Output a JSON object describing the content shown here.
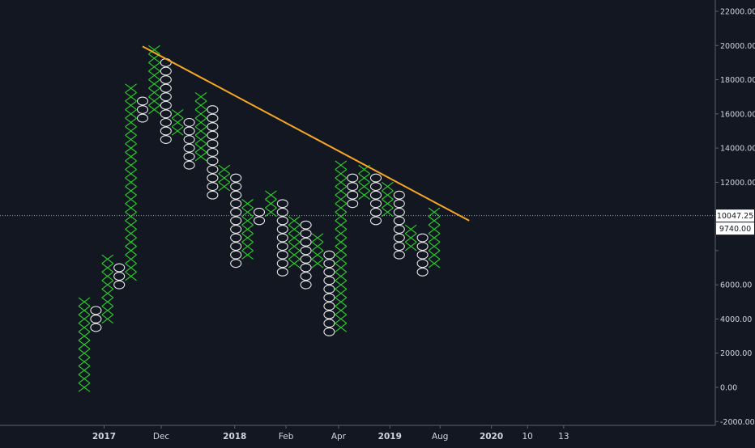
{
  "colors": {
    "background": "#131722",
    "x_mark": "#2bd12b",
    "o_mark": "#e8e8e8",
    "trendline": "#f5a623",
    "axis_text": "#d1d4dc",
    "axis_line": "#5d606b",
    "crosshair": "#9598a1",
    "price_label_bg": "#ffffff",
    "price_label_text": "#131722"
  },
  "chart_data": {
    "type": "point-and-figure",
    "title": "",
    "xlabel": "",
    "ylabel": "",
    "ylim": [
      -2000,
      22600
    ],
    "box_size": 500,
    "y_ticks": [
      -2000,
      0,
      2000,
      4000,
      6000,
      8000,
      10000,
      12000,
      14000,
      16000,
      18000,
      20000,
      22000
    ],
    "y_tick_labels": [
      "-2000.00",
      "0.00",
      "2000.00",
      "4000.00",
      "6000.00",
      "",
      "",
      "12000.00",
      "14000.00",
      "16000.00",
      "18000.00",
      "20000.00",
      "22000.00"
    ],
    "x_labels": [
      {
        "label": "2017",
        "col": 1.7,
        "bold": true
      },
      {
        "label": "Dec",
        "col": 6.6,
        "bold": false
      },
      {
        "label": "2018",
        "col": 12.9,
        "bold": true
      },
      {
        "label": "Feb",
        "col": 17.3,
        "bold": false
      },
      {
        "label": "Apr",
        "col": 21.8,
        "bold": false
      },
      {
        "label": "2019",
        "col": 26.2,
        "bold": true
      },
      {
        "label": "Aug",
        "col": 30.5,
        "bold": false
      },
      {
        "label": "2020",
        "col": 34.9,
        "bold": true
      },
      {
        "label": "10",
        "col": 38.0,
        "bold": false
      },
      {
        "label": "13",
        "col": 41.1,
        "bold": false
      }
    ],
    "columns": [
      {
        "type": "X",
        "low": 0,
        "high": 4750
      },
      {
        "type": "O",
        "low": 3500,
        "high": 4250
      },
      {
        "type": "X",
        "low": 4000,
        "high": 7250
      },
      {
        "type": "O",
        "low": 6000,
        "high": 6750
      },
      {
        "type": "X",
        "low": 6500,
        "high": 17250
      },
      {
        "type": "O",
        "low": 15750,
        "high": 16750
      },
      {
        "type": "X",
        "low": 16250,
        "high": 19500
      },
      {
        "type": "O",
        "low": 14500,
        "high": 19000
      },
      {
        "type": "X",
        "low": 15000,
        "high": 16000
      },
      {
        "type": "O",
        "low": 13000,
        "high": 15250
      },
      {
        "type": "X",
        "low": 13500,
        "high": 16750
      },
      {
        "type": "O",
        "low": 11250,
        "high": 16250
      },
      {
        "type": "X",
        "low": 11750,
        "high": 12750
      },
      {
        "type": "O",
        "low": 7250,
        "high": 12000
      },
      {
        "type": "X",
        "low": 7750,
        "high": 10750
      },
      {
        "type": "O",
        "low": 9750,
        "high": 10250
      },
      {
        "type": "X",
        "low": 10250,
        "high": 11250
      },
      {
        "type": "O",
        "low": 6750,
        "high": 10750
      },
      {
        "type": "X",
        "low": 7250,
        "high": 9750
      },
      {
        "type": "O",
        "low": 6000,
        "high": 9250
      },
      {
        "type": "X",
        "low": 7250,
        "high": 8750
      },
      {
        "type": "O",
        "low": 3250,
        "high": 7750
      },
      {
        "type": "X",
        "low": 3500,
        "high": 12750
      },
      {
        "type": "O",
        "low": 10750,
        "high": 12250
      },
      {
        "type": "X",
        "low": 11250,
        "high": 12500
      },
      {
        "type": "O",
        "low": 9750,
        "high": 12000
      },
      {
        "type": "X",
        "low": 10250,
        "high": 11750
      },
      {
        "type": "O",
        "low": 7750,
        "high": 11250
      },
      {
        "type": "X",
        "low": 8250,
        "high": 9250
      },
      {
        "type": "O",
        "low": 6750,
        "high": 8750
      },
      {
        "type": "X",
        "low": 7250,
        "high": 10250
      }
    ],
    "trendline": {
      "from": {
        "col": 5.0,
        "value": 19950
      },
      "to": {
        "col": 33.0,
        "value": 9750
      }
    },
    "crosshair_value": 10047.25,
    "price_labels": [
      {
        "text": "10047.25",
        "value": 10047.25
      },
      {
        "text": "9740.00",
        "value": 9740
      }
    ]
  }
}
